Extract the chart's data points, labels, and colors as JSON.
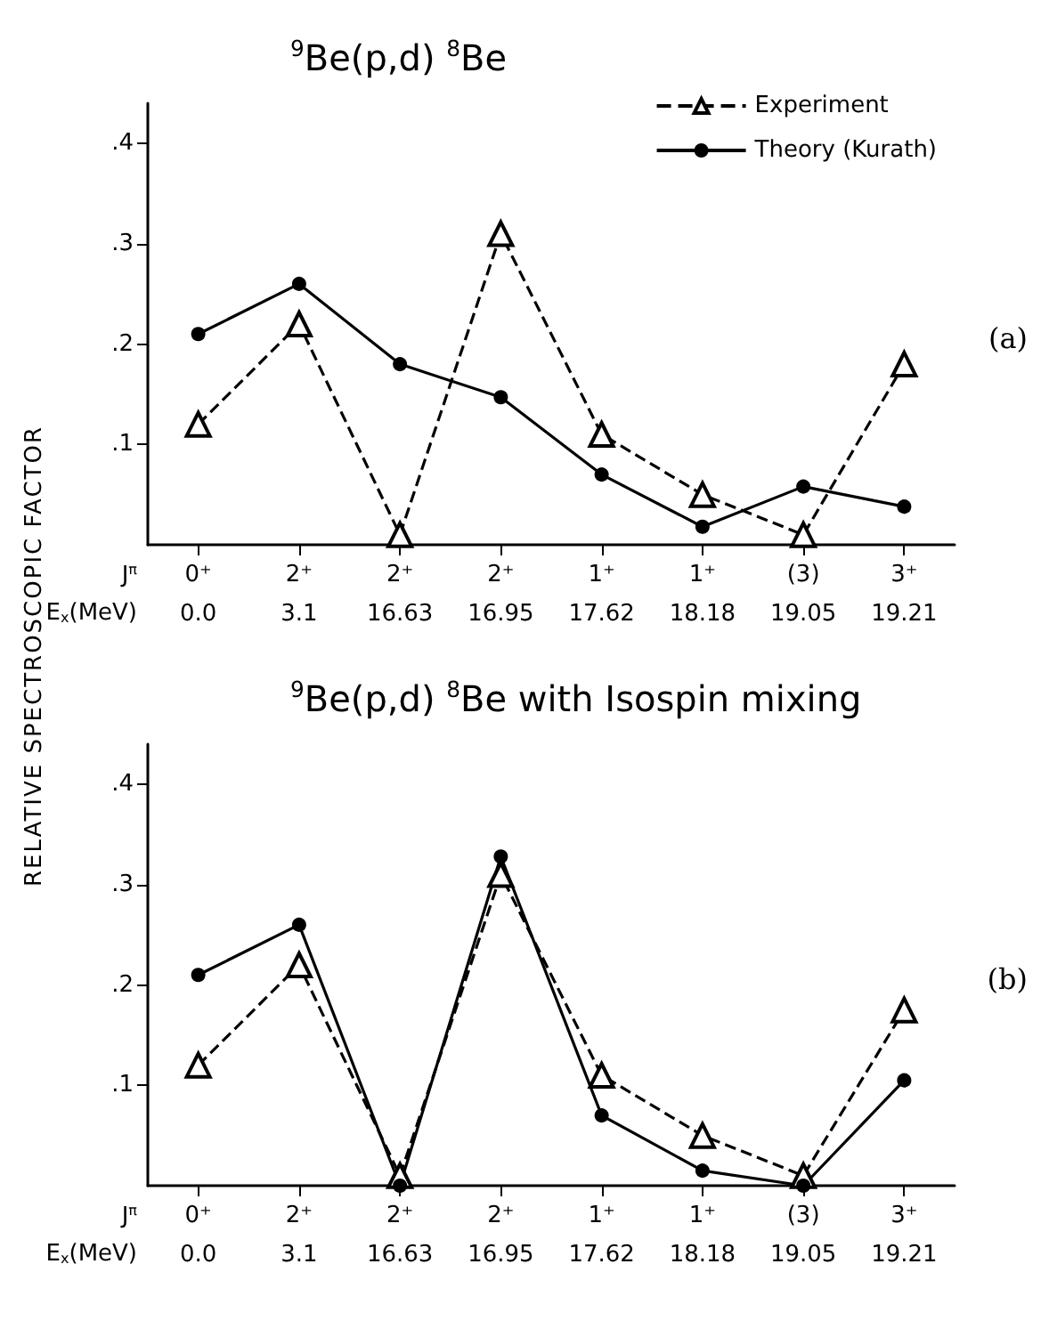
{
  "chart_data": [
    {
      "type": "line",
      "title": "$^{9}$Be(p,d) $^{8}$Be",
      "ylabel": "RELATIVE SPECTROSCOPIC FACTOR",
      "categories": [
        "0⁺\n0.0",
        "2⁺\n3.1",
        "2⁺\n16.63",
        "2⁺\n16.95",
        "1⁺\n17.62",
        "1⁺\n18.18",
        "(3)\n19.05",
        "3⁺\n19.21"
      ],
      "series": [
        {
          "name": "Experiment",
          "color": "#000000",
          "marker": "triangle",
          "line_style": "dashed",
          "values": [
            0.12,
            0.22,
            0.01,
            0.31,
            0.11,
            0.05,
            0.01,
            0.18
          ]
        },
        {
          "name": "Theory (Kurath)",
          "color": "#000000",
          "marker": "circle",
          "line_style": "solid",
          "values": [
            0.21,
            0.26,
            0.18,
            0.147,
            0.07,
            0.018,
            0.058,
            0.038
          ]
        }
      ],
      "ylim": [
        0,
        0.44
      ],
      "yticks": [
        {
          "value": 0.1,
          "label": ".1"
        },
        {
          "value": 0.2,
          "label": ".2"
        },
        {
          "value": 0.3,
          "label": ".3"
        },
        {
          "value": 0.4,
          "label": ".4"
        }
      ],
      "grid": false,
      "legend": "top right",
      "annotations": [
        "J$^{π}$",
        "E$_{x}$(MeV)",
        "(a)"
      ]
    },
    {
      "type": "line",
      "title": "$^{9}$Be(p,d) $^{8}$Be with Isospin mixing",
      "categories": [
        "0⁺\n0.0",
        "2⁺\n3.1",
        "2⁺\n16.63",
        "2⁺\n16.95",
        "1⁺\n17.62",
        "1⁺\n18.18",
        "(3)\n19.05",
        "3⁺\n19.21"
      ],
      "series": [
        {
          "color": "#000000",
          "marker": "triangle",
          "line_style": "dashed",
          "values": [
            0.12,
            0.22,
            0.01,
            0.31,
            0.11,
            0.05,
            0.01,
            0.175
          ]
        },
        {
          "color": "#000000",
          "marker": "circle",
          "line_style": "solid",
          "values": [
            0.21,
            0.26,
            0.0,
            0.328,
            0.07,
            0.015,
            0.0,
            0.105
          ]
        }
      ],
      "ylim": [
        0,
        0.44
      ],
      "yticks": [
        {
          "value": 0.1,
          "label": ".1"
        },
        {
          "value": 0.2,
          "label": ".2"
        },
        {
          "value": 0.3,
          "label": ".3"
        },
        {
          "value": 0.4,
          "label": ".4"
        }
      ],
      "grid": false,
      "legend": false,
      "annotations": [
        "J$^{π}$",
        "E$_{x}$(MeV)",
        "(b)"
      ]
    }
  ]
}
